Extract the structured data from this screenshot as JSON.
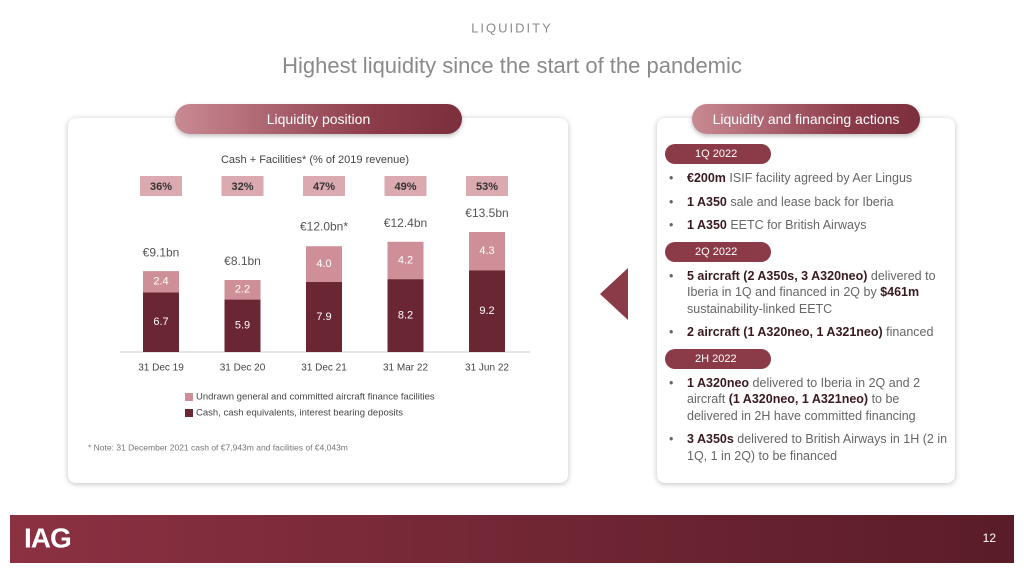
{
  "header": {
    "section": "LIQUIDITY",
    "title": "Highest liquidity since the start of the pandemic"
  },
  "left_panel": {
    "title": "Liquidity position"
  },
  "chart_data": {
    "type": "stacked_bar",
    "title": "Cash + Facilities* (% of 2019 revenue)",
    "categories": [
      "31 Dec 19",
      "31 Dec 20",
      "31 Dec 21",
      "31 Mar 22",
      "31 Jun 22"
    ],
    "series": [
      {
        "name": "Undrawn general and committed aircraft finance facilities",
        "color": "#cf8f98",
        "values": [
          2.4,
          2.2,
          4.0,
          4.2,
          4.3
        ],
        "value_labels": [
          "2.4",
          "2.2",
          "4.0",
          "4.2",
          "4.3"
        ]
      },
      {
        "name": "Cash, cash equivalents, interest bearing deposits",
        "color": "#6b2634",
        "values": [
          6.7,
          5.9,
          7.9,
          8.2,
          9.2
        ]
      }
    ],
    "totals": {
      "values": [
        9.1,
        8.1,
        12.0,
        12.4,
        13.5
      ],
      "value_labels": [
        "€9.1bn",
        "€8.1bn",
        "€12.0bn*",
        "€12.4bn",
        "€13.5bn"
      ]
    },
    "revenue_share": {
      "color": "#dba9b0",
      "values": [
        36,
        32,
        47,
        49,
        53
      ],
      "value_labels": [
        "36%",
        "32%",
        "47%",
        "49%",
        "53%"
      ]
    },
    "note": "* Note: 31 December 2021 cash of €7,943m and facilities of €4,043m"
  },
  "right_panel": {
    "title": "Liquidity and financing actions",
    "sections": [
      {
        "heading": "1Q 2022",
        "bullets": [
          [
            {
              "bold": "€200m"
            },
            " ISIF facility agreed by Aer Lingus"
          ],
          [
            {
              "bold": "1 A350"
            },
            " sale and lease back for Iberia"
          ],
          [
            {
              "bold": "1 A350"
            },
            " EETC for British Airways"
          ]
        ]
      },
      {
        "heading": "2Q 2022",
        "bullets": [
          [
            {
              "bold": "5 aircraft (2 A350s, 3 A320neo)"
            },
            " delivered to Iberia in 1Q and financed in 2Q by ",
            {
              "bold": "$461m"
            },
            " sustainability-linked EETC"
          ],
          [
            {
              "bold": "2 aircraft (1 A320neo, 1 A321neo)"
            },
            " financed"
          ]
        ]
      },
      {
        "heading": "2H 2022",
        "bullets": [
          [
            {
              "bold": "1 A320neo"
            },
            " delivered to Iberia in 2Q and 2 aircraft ",
            {
              "bold": "(1 A320neo, 1 A321neo)"
            },
            " to be delivered in 2H have committed financing"
          ],
          [
            {
              "bold": "3 A350s"
            },
            " delivered to British Airways in 1H (2 in 1Q, 1 in 2Q) to be financed"
          ]
        ]
      }
    ]
  },
  "footer": {
    "logo": "IAG",
    "page": "12"
  }
}
